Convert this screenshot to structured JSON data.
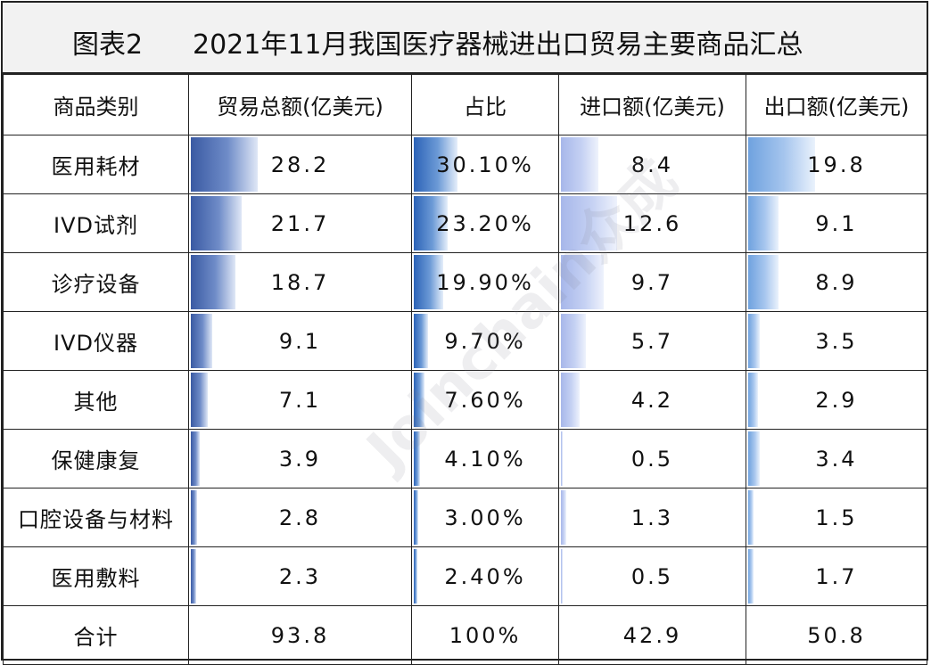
{
  "figure_label": "图表2",
  "title": "2021年11月我国医疗器械进出口贸易主要商品汇总",
  "watermark": "Joinchain众成",
  "colors": {
    "total_bar": "#3a5aa3",
    "share_bar": "#2c63b7",
    "import_bar": "#a7b7ea",
    "export_bar": "#6fa2df",
    "title_bg": "#f2f2f2"
  },
  "chart_data": {
    "type": "table",
    "title": "2021年11月我国医疗器械进出口贸易主要商品汇总",
    "columns": [
      "商品类别",
      "贸易总额(亿美元)",
      "占比",
      "进口额(亿美元)",
      "出口额(亿美元)"
    ],
    "rows": [
      {
        "category": "医用耗材",
        "total": "28.2",
        "share": "30.10%",
        "import": "8.4",
        "export": "19.8"
      },
      {
        "category": "IVD试剂",
        "total": "21.7",
        "share": "23.20%",
        "import": "12.6",
        "export": "9.1"
      },
      {
        "category": "诊疗设备",
        "total": "18.7",
        "share": "19.90%",
        "import": "9.7",
        "export": "8.9"
      },
      {
        "category": "IVD仪器",
        "total": "9.1",
        "share": "9.70%",
        "import": "5.7",
        "export": "3.5"
      },
      {
        "category": "其他",
        "total": "7.1",
        "share": "7.60%",
        "import": "4.2",
        "export": "2.9"
      },
      {
        "category": "保健康复",
        "total": "3.9",
        "share": "4.10%",
        "import": "0.5",
        "export": "3.4"
      },
      {
        "category": "口腔设备与材料",
        "total": "2.8",
        "share": "3.00%",
        "import": "1.3",
        "export": "1.5"
      },
      {
        "category": "医用敷料",
        "total": "2.3",
        "share": "2.40%",
        "import": "0.5",
        "export": "1.7"
      }
    ],
    "total_row": {
      "category": "合计",
      "total": "93.8",
      "share": "100%",
      "import": "42.9",
      "export": "50.8"
    }
  }
}
